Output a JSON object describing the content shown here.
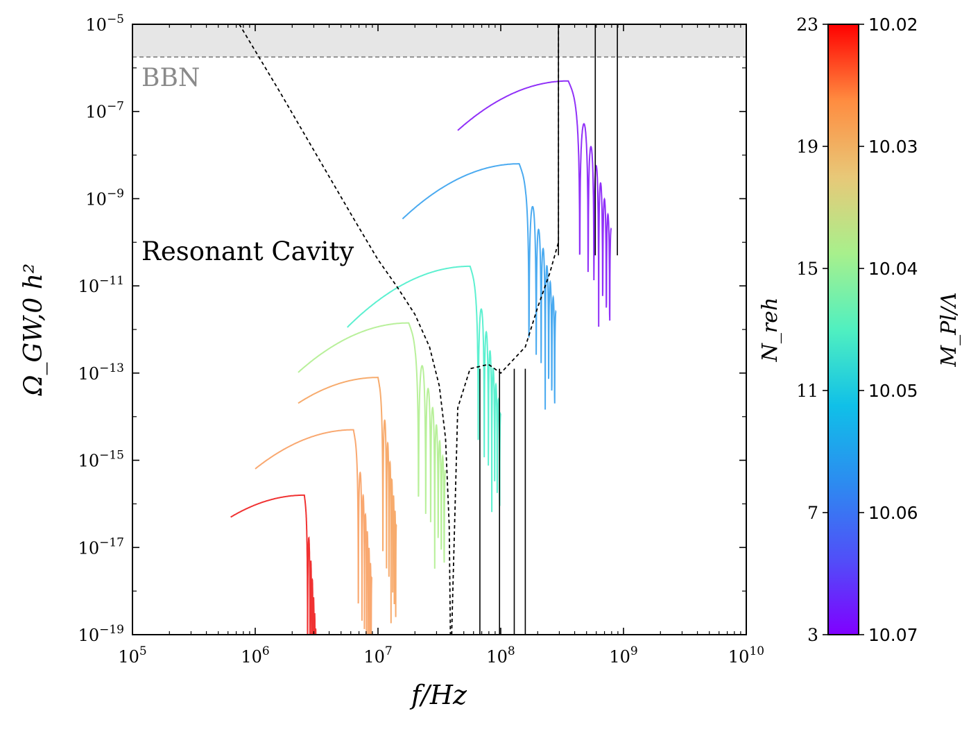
{
  "chart_data": {
    "type": "line",
    "xlabel": "f/Hz",
    "ylabel": "Ω_GW,0 h²",
    "x_scale": "log",
    "y_scale": "log",
    "xlim": [
      100000,
      10000000000
    ],
    "ylim": [
      1e-19,
      1e-05
    ],
    "x_ticks": [
      {
        "base": "10",
        "exp": "5"
      },
      {
        "base": "10",
        "exp": "6"
      },
      {
        "base": "10",
        "exp": "7"
      },
      {
        "base": "10",
        "exp": "8"
      },
      {
        "base": "10",
        "exp": "9"
      },
      {
        "base": "10",
        "exp": "10"
      }
    ],
    "y_ticks": [
      {
        "base": "10",
        "exp": "−5"
      },
      {
        "base": "10",
        "exp": "−7"
      },
      {
        "base": "10",
        "exp": "−9"
      },
      {
        "base": "10",
        "exp": "−11"
      },
      {
        "base": "10",
        "exp": "−13"
      },
      {
        "base": "10",
        "exp": "−15"
      },
      {
        "base": "10",
        "exp": "−17"
      },
      {
        "base": "10",
        "exp": "−19"
      }
    ],
    "bbn": {
      "label": "BBN",
      "threshold_log10": -5.75,
      "color": "#e6e6e6",
      "line_color": "#808080"
    },
    "annotation": "Resonant Cavity",
    "sensitivity_curve": {
      "name": "Resonant Cavity",
      "color": "#000000",
      "points": [
        [
          5.87,
          -5.0
        ],
        [
          6.2,
          -6.55
        ],
        [
          6.5,
          -8.0
        ],
        [
          6.8,
          -9.45
        ],
        [
          7.0,
          -10.4
        ],
        [
          7.15,
          -11.0
        ],
        [
          7.3,
          -11.65
        ],
        [
          7.42,
          -12.4
        ],
        [
          7.5,
          -13.3
        ],
        [
          7.55,
          -14.5
        ],
        [
          7.58,
          -16.5
        ],
        [
          7.59,
          -19.0
        ]
      ]
    },
    "colorbar": {
      "label_left": "N_reh",
      "label_right": "M_Pl/Λ",
      "left_ticks": [
        "23",
        "19",
        "15",
        "11",
        "7",
        "3"
      ],
      "right_ticks": [
        "10.02",
        "10.03",
        "10.04",
        "10.05",
        "10.06",
        "10.07"
      ],
      "colors": [
        "#ff0000",
        "#ff8c40",
        "#f0c878",
        "#a8f08c",
        "#50f0c0",
        "#10c8e8",
        "#3c8cf0",
        "#6450f8",
        "#8000ff"
      ]
    },
    "series": [
      {
        "name": "N_reh=23",
        "N_reh": 23,
        "color": "#f03232",
        "peak_f_log10": 6.4,
        "peak_omega_log10": -15.8,
        "cutoff_f_log10": 6.5,
        "lowf_start_f_log10": 5.8
      },
      {
        "name": "N_reh=21",
        "N_reh": 21,
        "color": "#f9a870",
        "peak_f_log10": 6.8,
        "peak_omega_log10": -14.3,
        "cutoff_f_log10": 6.95,
        "lowf_start_f_log10": 6.0
      },
      {
        "name": "N_reh=19",
        "N_reh": 19,
        "color": "#f7ab6d",
        "peak_f_log10": 7.0,
        "peak_omega_log10": -13.1,
        "cutoff_f_log10": 7.15,
        "lowf_start_f_log10": 6.35
      },
      {
        "name": "N_reh=17",
        "N_reh": 17,
        "color": "#b8f09a",
        "peak_f_log10": 7.25,
        "peak_omega_log10": -11.85,
        "cutoff_f_log10": 7.55,
        "lowf_start_f_log10": 6.35
      },
      {
        "name": "N_reh=13",
        "N_reh": 13,
        "color": "#5cf0d0",
        "peak_f_log10": 7.75,
        "peak_omega_log10": -10.55,
        "cutoff_f_log10": 8.0,
        "lowf_start_f_log10": 6.75
      },
      {
        "name": "N_reh=9",
        "N_reh": 9,
        "color": "#4aaaf0",
        "peak_f_log10": 8.15,
        "peak_omega_log10": -8.2,
        "cutoff_f_log10": 8.45,
        "lowf_start_f_log10": 7.2
      },
      {
        "name": "N_reh=5",
        "N_reh": 5,
        "color": "#9030f8",
        "peak_f_log10": 8.55,
        "peak_omega_log10": -6.3,
        "cutoff_f_log10": 8.9,
        "lowf_start_f_log10": 7.65
      }
    ]
  }
}
